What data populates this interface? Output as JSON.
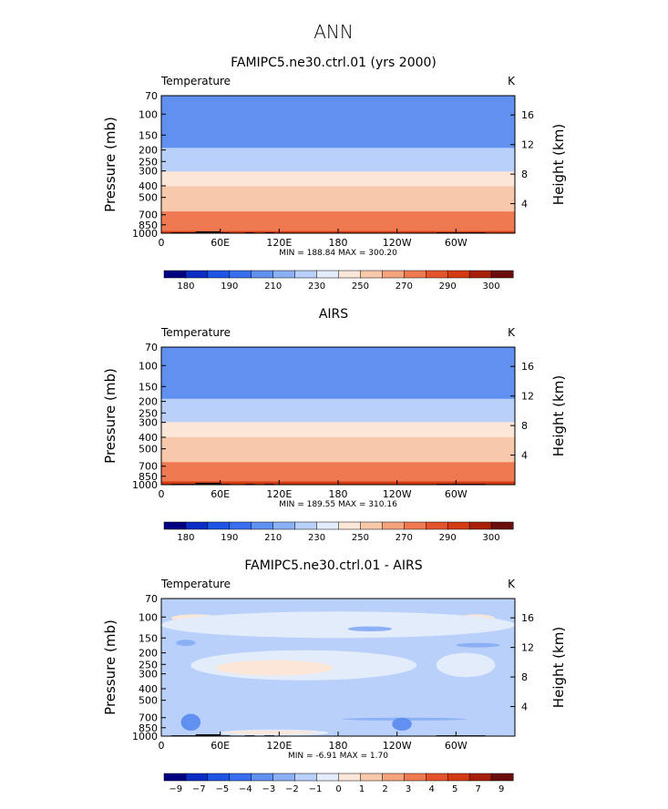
{
  "title": "ANN",
  "chart_data": [
    {
      "type": "heatmap",
      "title": "FAMIPC5.ne30.ctrl.01 (yrs 2000)",
      "variable": "Temperature",
      "units": "K",
      "ylabel": "Pressure (mb)",
      "y2label": "Height (km)",
      "xticks": [
        "0",
        "60E",
        "120E",
        "180",
        "120W",
        "60W"
      ],
      "xtick_lon": [
        0,
        60,
        120,
        180,
        240,
        300
      ],
      "xlim": [
        0,
        360
      ],
      "yticks": [
        "70",
        "100",
        "150",
        "200",
        "250",
        "300",
        "400",
        "500",
        "700",
        "850",
        "1000"
      ],
      "ytick_values": [
        70,
        100,
        150,
        200,
        250,
        300,
        400,
        500,
        700,
        850,
        1000
      ],
      "ylim": [
        70,
        1000
      ],
      "y2ticks": [
        "16",
        "12",
        "8",
        "4"
      ],
      "y2tick_values": [
        16,
        12,
        8,
        4
      ],
      "stats": "MIN = 188.84   MAX = 300.20",
      "colorbar_labels": [
        "180",
        "190",
        "210",
        "230",
        "250",
        "270",
        "290",
        "300"
      ],
      "colorbar_colors": [
        "#000080",
        "#0a2ec4",
        "#1f55e5",
        "#3a6ef0",
        "#6090f0",
        "#8cb0f5",
        "#b8d0fa",
        "#e2ecfb",
        "#fbe6d8",
        "#f8c8aa",
        "#f4a37c",
        "#ef7a52",
        "#e5532d",
        "#d43b12",
        "#a8200a",
        "#6a0d0d"
      ],
      "levels_bottom_to_top": [
        {
          "p_top": 950,
          "value": 296
        },
        {
          "p_top": 850,
          "value": 288
        },
        {
          "p_top": 760,
          "value": 283
        },
        {
          "p_top": 650,
          "value": 276
        },
        {
          "p_top": 560,
          "value": 268
        },
        {
          "p_top": 470,
          "value": 261
        },
        {
          "p_top": 400,
          "value": 255
        },
        {
          "p_top": 345,
          "value": 246
        },
        {
          "p_top": 300,
          "value": 237
        },
        {
          "p_top": 260,
          "value": 228
        },
        {
          "p_top": 225,
          "value": 220
        },
        {
          "p_top": 190,
          "value": 214
        },
        {
          "p_top": 160,
          "value": 209
        },
        {
          "p_top": 135,
          "value": 204
        },
        {
          "p_top": 70,
          "value": 200
        }
      ]
    },
    {
      "type": "heatmap",
      "title": "AIRS",
      "variable": "Temperature",
      "units": "K",
      "ylabel": "Pressure (mb)",
      "y2label": "Height (km)",
      "xticks": [
        "0",
        "60E",
        "120E",
        "180",
        "120W",
        "60W"
      ],
      "xtick_lon": [
        0,
        60,
        120,
        180,
        240,
        300
      ],
      "xlim": [
        0,
        360
      ],
      "yticks": [
        "70",
        "100",
        "150",
        "200",
        "250",
        "300",
        "400",
        "500",
        "700",
        "850",
        "1000"
      ],
      "ytick_values": [
        70,
        100,
        150,
        200,
        250,
        300,
        400,
        500,
        700,
        850,
        1000
      ],
      "ylim": [
        70,
        1000
      ],
      "y2ticks": [
        "16",
        "12",
        "8",
        "4"
      ],
      "y2tick_values": [
        16,
        12,
        8,
        4
      ],
      "stats": "MIN = 189.55   MAX = 310.16",
      "colorbar_labels": [
        "180",
        "190",
        "210",
        "230",
        "250",
        "270",
        "290",
        "300"
      ],
      "colorbar_colors": [
        "#000080",
        "#0a2ec4",
        "#1f55e5",
        "#3a6ef0",
        "#6090f0",
        "#8cb0f5",
        "#b8d0fa",
        "#e2ecfb",
        "#fbe6d8",
        "#f8c8aa",
        "#f4a37c",
        "#ef7a52",
        "#e5532d",
        "#d43b12",
        "#a8200a",
        "#6a0d0d"
      ],
      "levels_bottom_to_top": [
        {
          "p_top": 930,
          "value": 297
        },
        {
          "p_top": 830,
          "value": 289
        },
        {
          "p_top": 740,
          "value": 283
        },
        {
          "p_top": 640,
          "value": 276
        },
        {
          "p_top": 550,
          "value": 268
        },
        {
          "p_top": 460,
          "value": 261
        },
        {
          "p_top": 395,
          "value": 255
        },
        {
          "p_top": 340,
          "value": 246
        },
        {
          "p_top": 295,
          "value": 237
        },
        {
          "p_top": 258,
          "value": 228
        },
        {
          "p_top": 222,
          "value": 220
        },
        {
          "p_top": 188,
          "value": 214
        },
        {
          "p_top": 160,
          "value": 209
        },
        {
          "p_top": 132,
          "value": 204
        },
        {
          "p_top": 70,
          "value": 200
        }
      ]
    },
    {
      "type": "heatmap",
      "title": "FAMIPC5.ne30.ctrl.01 - AIRS",
      "variable": "Temperature",
      "units": "K",
      "ylabel": "Pressure (mb)",
      "y2label": "Height (km)",
      "xticks": [
        "0",
        "60E",
        "120E",
        "180",
        "120W",
        "60W"
      ],
      "xtick_lon": [
        0,
        60,
        120,
        180,
        240,
        300
      ],
      "xlim": [
        0,
        360
      ],
      "yticks": [
        "70",
        "100",
        "150",
        "200",
        "250",
        "300",
        "400",
        "500",
        "700",
        "850",
        "1000"
      ],
      "ytick_values": [
        70,
        100,
        150,
        200,
        250,
        300,
        400,
        500,
        700,
        850,
        1000
      ],
      "ylim": [
        70,
        1000
      ],
      "y2ticks": [
        "16",
        "12",
        "8",
        "4"
      ],
      "y2tick_values": [
        16,
        12,
        8,
        4
      ],
      "stats": "MIN =  -6.91   MAX =    1.70",
      "colorbar_labels": [
        "-9",
        "-7",
        "-5",
        "-4",
        "-3",
        "-2",
        "-1",
        "0",
        "1",
        "2",
        "3",
        "4",
        "5",
        "7",
        "9"
      ],
      "colorbar_colors": [
        "#000080",
        "#0a2ec4",
        "#1f55e5",
        "#3a6ef0",
        "#6090f0",
        "#8cb0f5",
        "#b8d0fa",
        "#e2ecfb",
        "#fbe6d8",
        "#f8c8aa",
        "#f4a37c",
        "#ef7a52",
        "#e5532d",
        "#d43b12",
        "#a8200a",
        "#6a0d0d"
      ],
      "background_value": -1.5,
      "features": [
        {
          "kind": "warm",
          "lon": [
            10,
            60
          ],
          "p": [
            95,
            110
          ],
          "value": 0.5
        },
        {
          "kind": "warm",
          "lon": [
            160,
            270
          ],
          "p": [
            92,
            115
          ],
          "value": 0.5
        },
        {
          "kind": "warm",
          "lon": [
            300,
            340
          ],
          "p": [
            95,
            112
          ],
          "value": 0.5
        },
        {
          "kind": "light",
          "lon": [
            0,
            360
          ],
          "p": [
            90,
            150
          ],
          "value": -0.5
        },
        {
          "kind": "light",
          "lon": [
            30,
            260
          ],
          "p": [
            190,
            340
          ],
          "value": -0.5
        },
        {
          "kind": "light",
          "lon": [
            280,
            340
          ],
          "p": [
            200,
            320
          ],
          "value": -0.5
        },
        {
          "kind": "warm",
          "lon": [
            55,
            175
          ],
          "p": [
            230,
            310
          ],
          "value": 0.5
        },
        {
          "kind": "light",
          "lon": [
            60,
            170
          ],
          "p": [
            880,
            1000
          ],
          "value": -0.5
        },
        {
          "kind": "warm",
          "lon": [
            65,
            160
          ],
          "p": [
            900,
            960
          ],
          "value": 0.5
        },
        {
          "kind": "cool",
          "lon": [
            15,
            35
          ],
          "p": [
            155,
            175
          ],
          "value": -2.5
        },
        {
          "kind": "cool",
          "lon": [
            190,
            235
          ],
          "p": [
            120,
            132
          ],
          "value": -2.5
        },
        {
          "kind": "cool",
          "lon": [
            300,
            345
          ],
          "p": [
            165,
            180
          ],
          "value": -2.5
        },
        {
          "kind": "cool",
          "lon": [
            185,
            310
          ],
          "p": [
            700,
            740
          ],
          "value": -2.5
        },
        {
          "kind": "cool",
          "lon": [
            20,
            40
          ],
          "p": [
            650,
            900
          ],
          "value": -3.5
        },
        {
          "kind": "cool",
          "lon": [
            235,
            255
          ],
          "p": [
            700,
            900
          ],
          "value": -3.5
        }
      ]
    }
  ]
}
